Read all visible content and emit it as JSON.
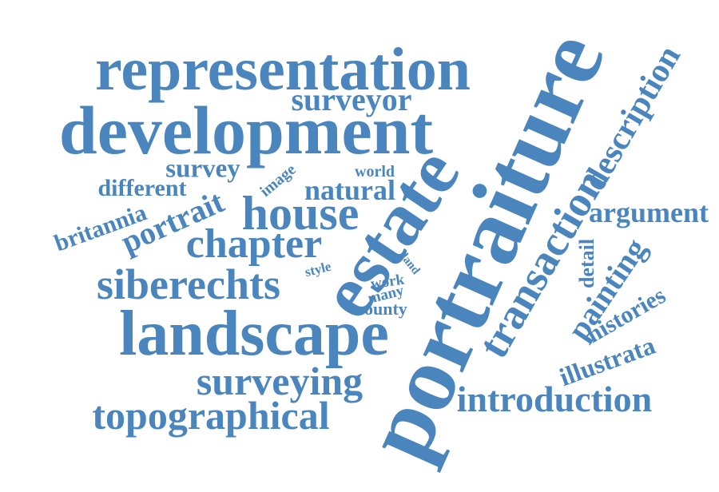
{
  "color": "#4a86bd",
  "words": {
    "portraiture": "portraiture",
    "development": "development",
    "representation": "representation",
    "estate": "estate",
    "landscape": "landscape",
    "transaction": "transaction",
    "house": "house",
    "description": "description",
    "topographical": "topographical",
    "siberechts": "siberechts",
    "surveying": "surveying",
    "introduction": "introduction",
    "chapter": "chapter",
    "painting": "painting",
    "surveyor": "surveyor",
    "natural": "natural",
    "argument": "argument",
    "portrait": "portrait",
    "survey": "survey",
    "britannia": "britannia",
    "different": "different",
    "histories": "histories",
    "illustrata": "illustrata",
    "detail": "detail",
    "image": "image",
    "world": "world",
    "county": "county",
    "work": "work",
    "many": "many",
    "style": "style",
    "land": "land"
  }
}
